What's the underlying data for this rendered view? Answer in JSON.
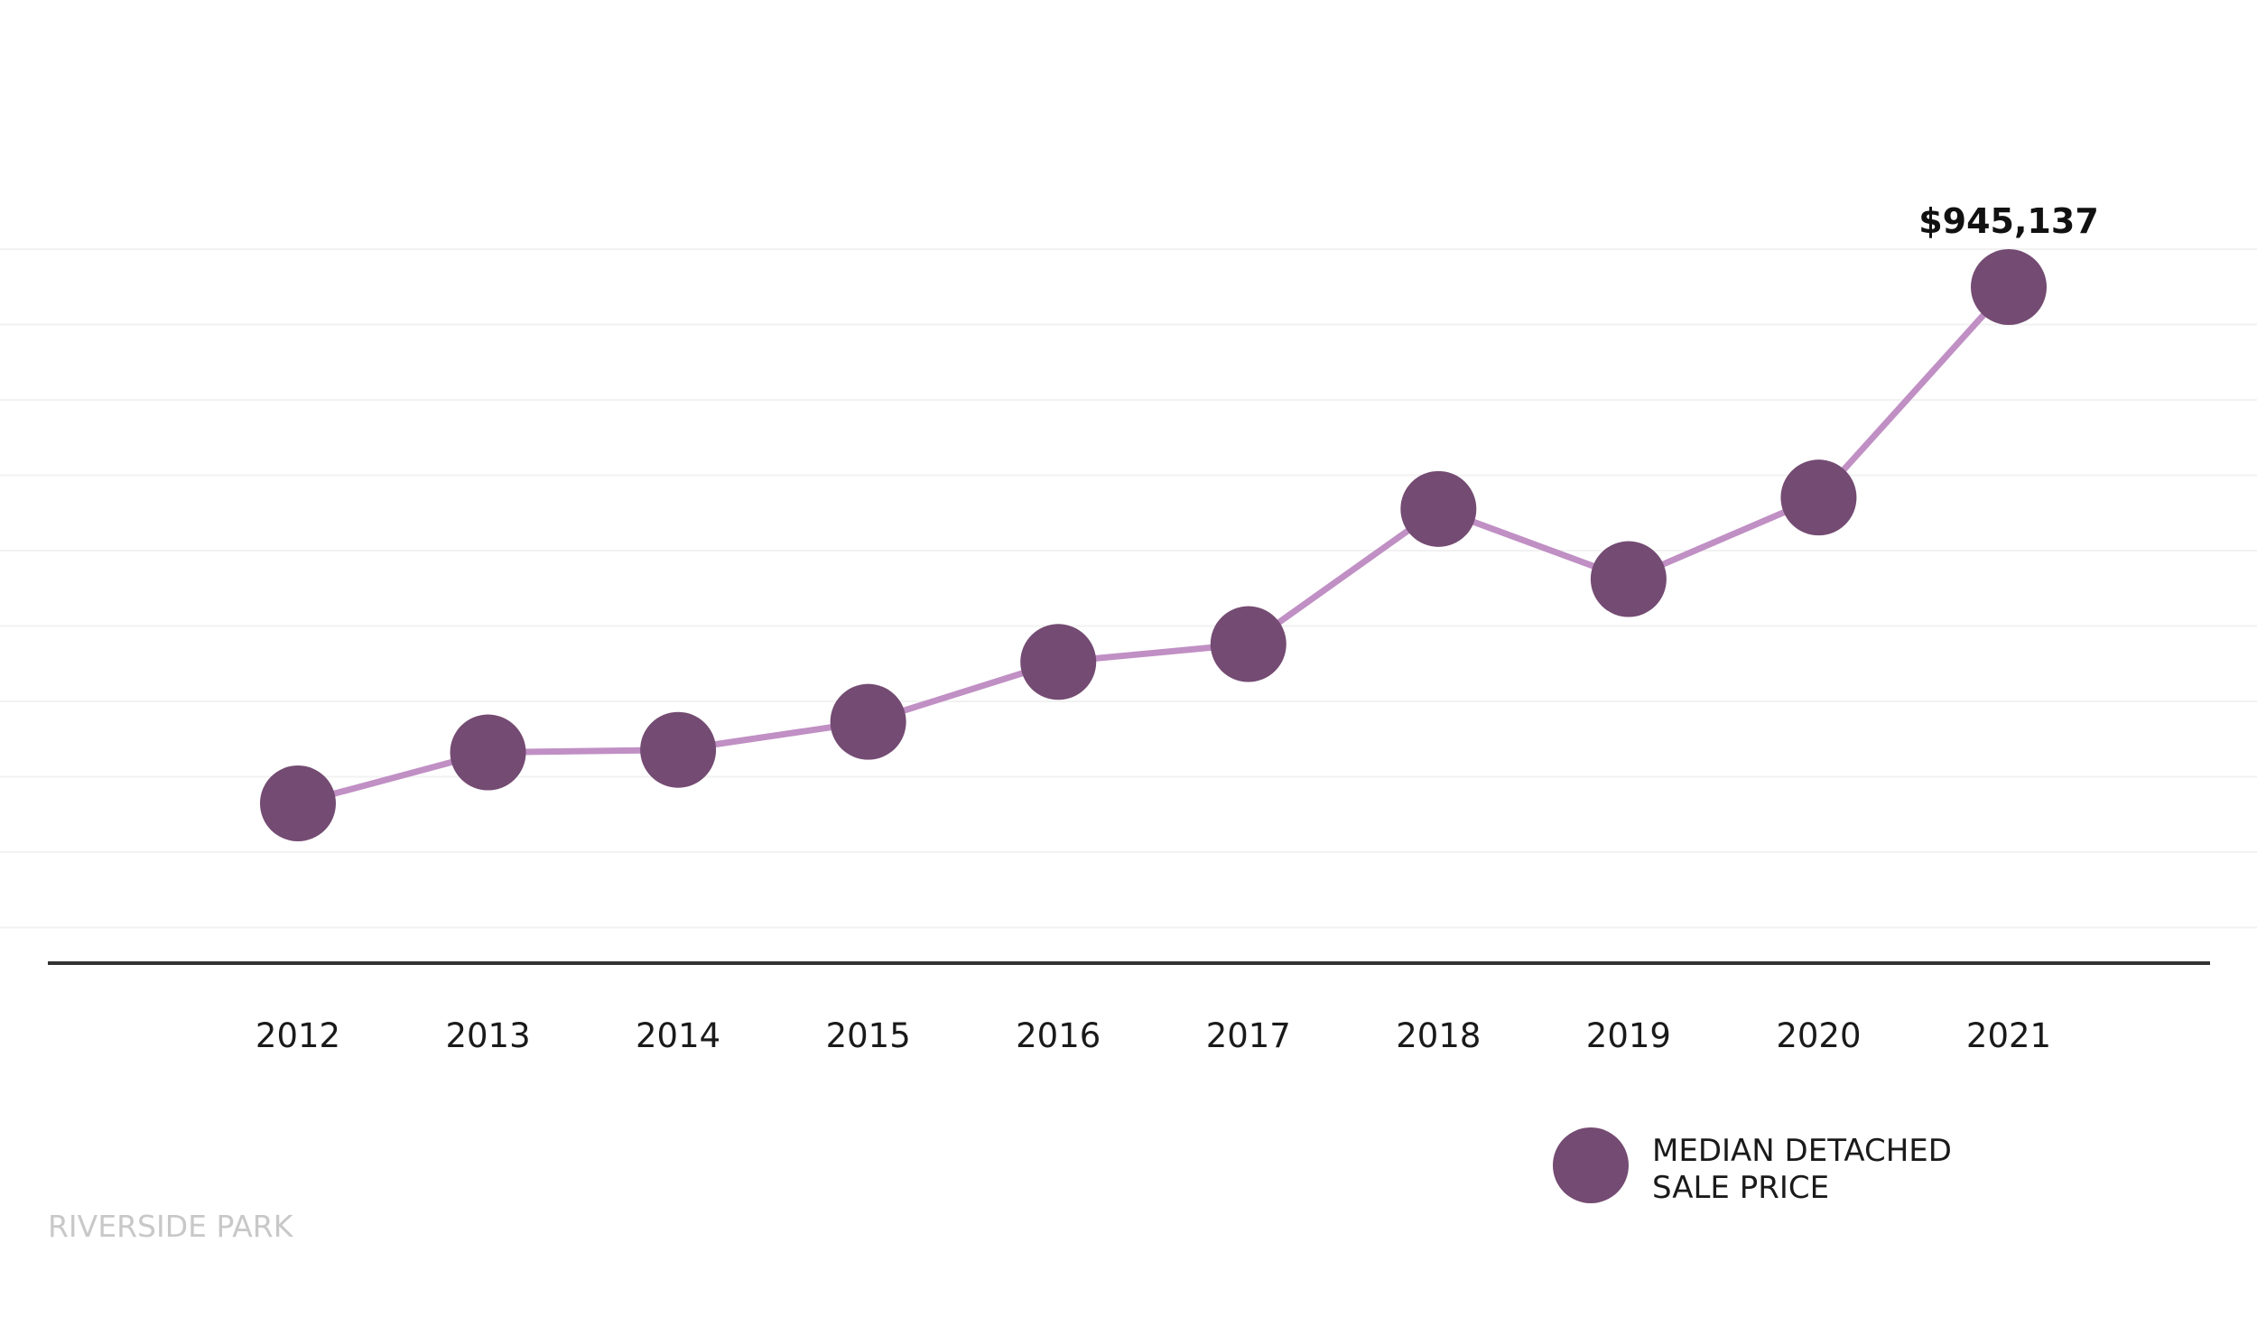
{
  "chart_data": {
    "type": "line",
    "title": "",
    "xlabel": "",
    "ylabel": "",
    "categories": [
      "2012",
      "2013",
      "2014",
      "2015",
      "2016",
      "2017",
      "2018",
      "2019",
      "2020",
      "2021"
    ],
    "series": [
      {
        "name": "MEDIAN DETACHED SALE PRICE",
        "values": [
          540000,
          580000,
          582000,
          604000,
          651000,
          665000,
          771000,
          716000,
          780000,
          945137
        ]
      }
    ],
    "data_labels": [
      {
        "index": 9,
        "text": "$945,137"
      }
    ],
    "legend": {
      "placement": "bottom-right",
      "lines": [
        "MEDIAN DETACHED",
        "SALE PRICE"
      ]
    },
    "ylim": [
      400000,
      1000000
    ],
    "grid": true,
    "colors": {
      "marker": "#744b72",
      "line": "#c08fc4",
      "gridline": "#f2f2f2",
      "axis": "#333333",
      "watermark": "#c8c8c8"
    }
  },
  "watermark": "RIVERSIDE PARK"
}
